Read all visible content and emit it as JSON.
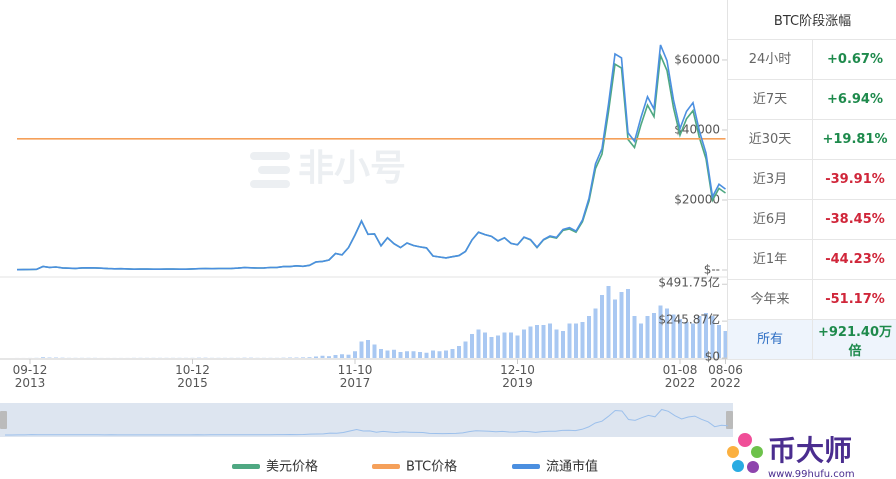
{
  "chart_data": {
    "type": "line",
    "categories": [
      null,
      null,
      "09-12\n2013",
      null,
      null,
      null,
      null,
      null,
      null,
      null,
      null,
      null,
      null,
      null,
      null,
      null,
      null,
      null,
      null,
      null,
      null,
      null,
      null,
      null,
      null,
      null,
      null,
      "10-12\n2015",
      null,
      null,
      null,
      null,
      null,
      null,
      null,
      null,
      null,
      null,
      null,
      null,
      null,
      null,
      null,
      null,
      null,
      null,
      null,
      null,
      null,
      null,
      null,
      null,
      "11-10\n2017",
      null,
      null,
      null,
      null,
      null,
      null,
      null,
      null,
      null,
      null,
      null,
      null,
      null,
      null,
      null,
      null,
      null,
      null,
      null,
      null,
      null,
      null,
      null,
      null,
      "12-10\n2019",
      null,
      null,
      null,
      null,
      null,
      null,
      null,
      null,
      null,
      null,
      null,
      null,
      null,
      null,
      null,
      null,
      null,
      null,
      null,
      null,
      null,
      null,
      null,
      null,
      "01-08\n2022",
      null,
      null,
      null,
      null,
      null,
      null,
      "08-06\n2022"
    ],
    "series": [
      {
        "name": "美元价格",
        "color": "#4fa882",
        "values": [
          90,
          120,
          130,
          200,
          1000,
          750,
          850,
          600,
          500,
          450,
          600,
          620,
          600,
          500,
          390,
          330,
          380,
          320,
          220,
          250,
          250,
          230,
          230,
          260,
          285,
          230,
          235,
          310,
          370,
          430,
          370,
          440,
          415,
          450,
          530,
          680,
          620,
          575,
          610,
          700,
          740,
          960,
          970,
          1190,
          1070,
          1350,
          2300,
          2450,
          2850,
          4700,
          4300,
          6400,
          10000,
          14000,
          10200,
          10300,
          6900,
          9200,
          7500,
          6400,
          7700,
          7000,
          6600,
          6300,
          4000,
          3700,
          3450,
          3800,
          4100,
          5300,
          8600,
          10800,
          10100,
          9600,
          8300,
          9200,
          7600,
          7200,
          9350,
          8600,
          6400,
          8600,
          9500,
          9100,
          11300,
          11700,
          10800,
          13800,
          19700,
          29000,
          33100,
          45200,
          58800,
          57700,
          37300,
          35000,
          41500,
          47100,
          43800,
          61300,
          57000,
          46300,
          38500,
          43200,
          45500,
          37700,
          31800,
          19900,
          23300,
          22000
        ]
      },
      {
        "name": "BTC价格",
        "color": "#f5a05a",
        "axis": "y2",
        "values": [
          1,
          1,
          1,
          1,
          1,
          1,
          1,
          1,
          1,
          1,
          1,
          1,
          1,
          1,
          1,
          1,
          1,
          1,
          1,
          1,
          1,
          1,
          1,
          1,
          1,
          1,
          1,
          1,
          1,
          1,
          1,
          1,
          1,
          1,
          1,
          1,
          1,
          1,
          1,
          1,
          1,
          1,
          1,
          1,
          1,
          1,
          1,
          1,
          1,
          1,
          1,
          1,
          1,
          1,
          1,
          1,
          1,
          1,
          1,
          1,
          1,
          1,
          1,
          1,
          1,
          1,
          1,
          1,
          1,
          1,
          1,
          1,
          1,
          1,
          1,
          1,
          1,
          1,
          1,
          1,
          1,
          1,
          1,
          1,
          1,
          1,
          1,
          1,
          1,
          1,
          1,
          1,
          1,
          1,
          1,
          1,
          1,
          1,
          1,
          1,
          1,
          1,
          1,
          1,
          1,
          1,
          1,
          1,
          1,
          1
        ]
      },
      {
        "name": "流通市值",
        "color": "#4b8fe0",
        "values": [
          90,
          120,
          130,
          200,
          1000,
          750,
          850,
          600,
          500,
          450,
          600,
          620,
          600,
          500,
          390,
          330,
          380,
          320,
          220,
          250,
          250,
          230,
          230,
          260,
          285,
          230,
          235,
          310,
          370,
          430,
          370,
          440,
          415,
          450,
          530,
          680,
          620,
          575,
          610,
          700,
          740,
          960,
          970,
          1190,
          1070,
          1350,
          2300,
          2450,
          2850,
          4700,
          4300,
          6400,
          10000,
          14000,
          10200,
          10300,
          6900,
          9200,
          7500,
          6400,
          7700,
          7000,
          6600,
          6300,
          4000,
          3700,
          3450,
          3800,
          4100,
          5300,
          8600,
          10800,
          10100,
          9600,
          8300,
          9200,
          7600,
          7200,
          9400,
          8700,
          6500,
          8700,
          9700,
          9300,
          11600,
          12100,
          11100,
          14300,
          20500,
          30300,
          34700,
          47400,
          61700,
          60600,
          39200,
          36800,
          43600,
          49500,
          46000,
          64300,
          59800,
          48600,
          40400,
          45300,
          47800,
          39600,
          33400,
          20900,
          24500,
          23100
        ]
      }
    ],
    "ylim": [
      0,
      75700
    ],
    "yticks": [
      {
        "value": 0,
        "label": "$--"
      },
      {
        "value": 20000,
        "label": "$20000"
      },
      {
        "value": 40000,
        "label": "$40000"
      },
      {
        "value": 60000,
        "label": "$60000"
      }
    ],
    "y2lim": [
      0,
      2.02
    ],
    "volume": {
      "color": "#a9c8f2",
      "ylim": [
        0,
        540
      ],
      "yticks": [
        {
          "value": 0,
          "label": "$0"
        },
        {
          "value": 245.87,
          "label": "$245.87亿"
        },
        {
          "value": 491.75,
          "label": "$491.75亿"
        }
      ],
      "values": [
        0.3,
        0.3,
        0.5,
        1,
        5,
        3,
        3,
        2,
        1,
        1,
        1,
        1,
        1,
        0.5,
        0.5,
        0.5,
        0.5,
        0.5,
        1,
        1,
        1,
        1,
        1,
        1,
        1,
        1,
        1,
        1,
        2,
        2,
        1,
        1,
        1,
        1,
        1,
        2,
        2,
        1,
        1,
        1,
        1,
        2,
        3,
        3,
        4,
        5,
        10,
        15,
        12,
        20,
        25,
        22,
        45,
        110,
        120,
        90,
        60,
        50,
        55,
        40,
        45,
        45,
        40,
        35,
        50,
        45,
        50,
        60,
        80,
        110,
        160,
        190,
        170,
        140,
        150,
        170,
        170,
        150,
        190,
        210,
        220,
        220,
        230,
        190,
        180,
        230,
        230,
        240,
        280,
        330,
        420,
        480,
        390,
        440,
        460,
        280,
        230,
        280,
        300,
        350,
        330,
        290,
        260,
        240,
        230,
        280,
        300,
        280,
        220,
        180
      ]
    }
  },
  "table": {
    "title": "BTC阶段涨幅",
    "rows": [
      [
        "24小时",
        "+0.67%"
      ],
      [
        "近7天",
        "+6.94%"
      ],
      [
        "近30天",
        "+19.81%"
      ],
      [
        "近3月",
        "-39.91%"
      ],
      [
        "近6月",
        "-38.45%"
      ],
      [
        "近1年",
        "-44.23%"
      ],
      [
        "今年来",
        "-51.17%"
      ],
      [
        "所有",
        "+921.40万倍"
      ]
    ]
  },
  "watermark": "非小号",
  "logo": {
    "name": "币大师",
    "url": "www.99hufu.com"
  }
}
